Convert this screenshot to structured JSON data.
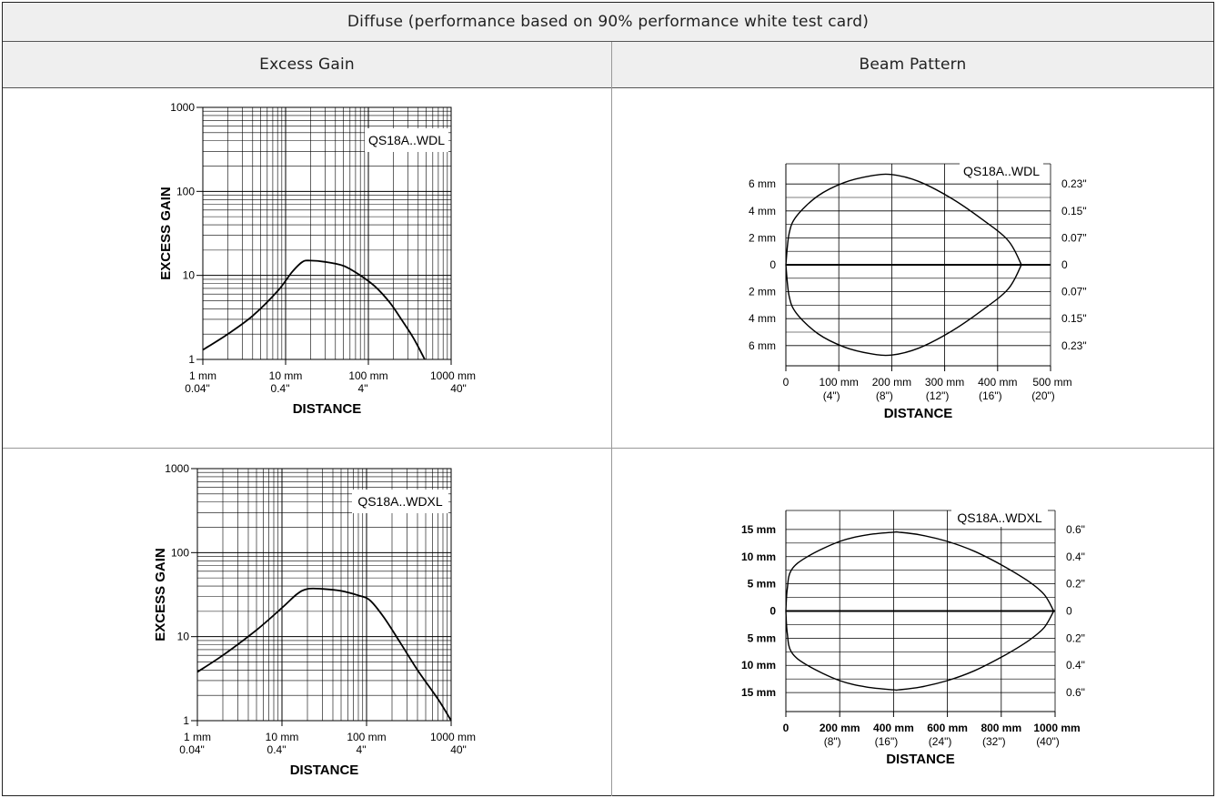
{
  "table": {
    "title": "Diffuse (performance based on 90% performance white test card)",
    "col_excess_gain": "Excess Gain",
    "col_beam_pattern": "Beam Pattern"
  },
  "colors": {
    "line": "#000000",
    "grid": "#000000",
    "header_bg": "#efefef",
    "border": "#222222"
  },
  "chart_data": [
    {
      "type": "line",
      "id": "eg1",
      "title": "",
      "legend": "QS18A..WDL",
      "ylabel": "EXCESS GAIN",
      "xlabel": "DISTANCE",
      "x_scale": "log",
      "y_scale": "log",
      "xlim": [
        1,
        1000
      ],
      "ylim": [
        1,
        1000
      ],
      "y_ticks": [
        "1000",
        "100",
        "10",
        "1"
      ],
      "x_ticks": [
        {
          "mm": "1 mm",
          "in": "0.04\""
        },
        {
          "mm": "10 mm",
          "in": "0.4\""
        },
        {
          "mm": "100 mm",
          "in": "4\""
        },
        {
          "mm": "1000 mm",
          "in": "40\""
        }
      ],
      "series": [
        {
          "x_mm": [
            1,
            2,
            4,
            8,
            12,
            16,
            20,
            30,
            50,
            80,
            120,
            180,
            250,
            350,
            480
          ],
          "y": [
            1.3,
            2,
            3.3,
            6.5,
            11,
            14.5,
            15,
            14.5,
            13,
            10,
            7.4,
            4.8,
            3,
            1.8,
            1
          ]
        }
      ]
    },
    {
      "type": "line",
      "id": "bp1",
      "title": "",
      "legend": "QS18A..WDL",
      "xlabel": "DISTANCE",
      "xlim": [
        0,
        500
      ],
      "ylim": [
        -7.5,
        7.5
      ],
      "x_ticks": [
        {
          "mm": "0",
          "in": ""
        },
        {
          "mm": "100 mm",
          "in": "(4\")"
        },
        {
          "mm": "200 mm",
          "in": "(8\")"
        },
        {
          "mm": "300 mm",
          "in": "(12\")"
        },
        {
          "mm": "400 mm",
          "in": "(16\")"
        },
        {
          "mm": "500 mm",
          "in": "(20\")"
        }
      ],
      "y_ticks_left": [
        "6 mm",
        "4 mm",
        "2 mm",
        "0",
        "2 mm",
        "4 mm",
        "6 mm"
      ],
      "y_ticks_right": [
        "0.23\"",
        "0.15\"",
        "0.07\"",
        "0",
        "0.07\"",
        "0.15\"",
        "0.23\""
      ],
      "y_tick_values": [
        6,
        4,
        2,
        0,
        -2,
        -4,
        -6
      ],
      "series": [
        {
          "x_mm": [
            0,
            6,
            20,
            60,
            110,
            160,
            200,
            250,
            310,
            370,
            420,
            445
          ],
          "y_mm": [
            0,
            2.3,
            3.6,
            5.1,
            6.1,
            6.6,
            6.7,
            6.2,
            5,
            3.4,
            1.8,
            0
          ]
        }
      ]
    },
    {
      "type": "line",
      "id": "eg2",
      "title": "",
      "legend": "QS18A..WDXL",
      "ylabel": "EXCESS GAIN",
      "xlabel": "DISTANCE",
      "x_scale": "log",
      "y_scale": "log",
      "xlim": [
        1,
        1000
      ],
      "ylim": [
        1,
        1000
      ],
      "y_ticks": [
        "1000",
        "100",
        "10",
        "1"
      ],
      "x_ticks": [
        {
          "mm": "1 mm",
          "in": "0.04\""
        },
        {
          "mm": "10 mm",
          "in": "0.4\""
        },
        {
          "mm": "100 mm",
          "in": "4\""
        },
        {
          "mm": "1000 mm",
          "in": "40\""
        }
      ],
      "series": [
        {
          "x_mm": [
            1,
            2,
            5,
            10,
            15,
            20,
            30,
            50,
            80,
            110,
            160,
            250,
            400,
            700,
            1000
          ],
          "y": [
            3.8,
            6,
            12,
            22,
            32,
            37,
            37,
            35,
            31,
            27,
            17,
            8.5,
            4,
            1.8,
            1
          ]
        }
      ]
    },
    {
      "type": "line",
      "id": "bp2",
      "title": "",
      "legend": "QS18A..WDXL",
      "xlabel": "DISTANCE",
      "xlim": [
        0,
        1000
      ],
      "ylim": [
        -18.5,
        18.5
      ],
      "x_ticks": [
        {
          "mm": "0",
          "in": ""
        },
        {
          "mm": "200 mm",
          "in": "(8\")"
        },
        {
          "mm": "400 mm",
          "in": "(16\")"
        },
        {
          "mm": "600 mm",
          "in": "(24\")"
        },
        {
          "mm": "800 mm",
          "in": "(32\")"
        },
        {
          "mm": "1000 mm",
          "in": "(40\")"
        }
      ],
      "y_ticks_left": [
        "15 mm",
        "10 mm",
        "5 mm",
        "0",
        "5 mm",
        "10 mm",
        "15 mm"
      ],
      "y_ticks_right": [
        "0.6\"",
        "0.4\"",
        "0.2\"",
        "0",
        "0.2\"",
        "0.4\"",
        "0.6\""
      ],
      "y_tick_values": [
        15,
        10,
        5,
        0,
        -5,
        -10,
        -15
      ],
      "series": [
        {
          "x_mm": [
            0,
            5,
            20,
            80,
            200,
            300,
            400,
            420,
            500,
            600,
            700,
            800,
            900,
            960,
            995
          ],
          "y_mm": [
            0,
            4,
            7.5,
            10,
            12.8,
            14,
            14.5,
            14.5,
            14,
            12.8,
            11,
            8.5,
            5.5,
            3,
            0
          ]
        }
      ]
    }
  ]
}
